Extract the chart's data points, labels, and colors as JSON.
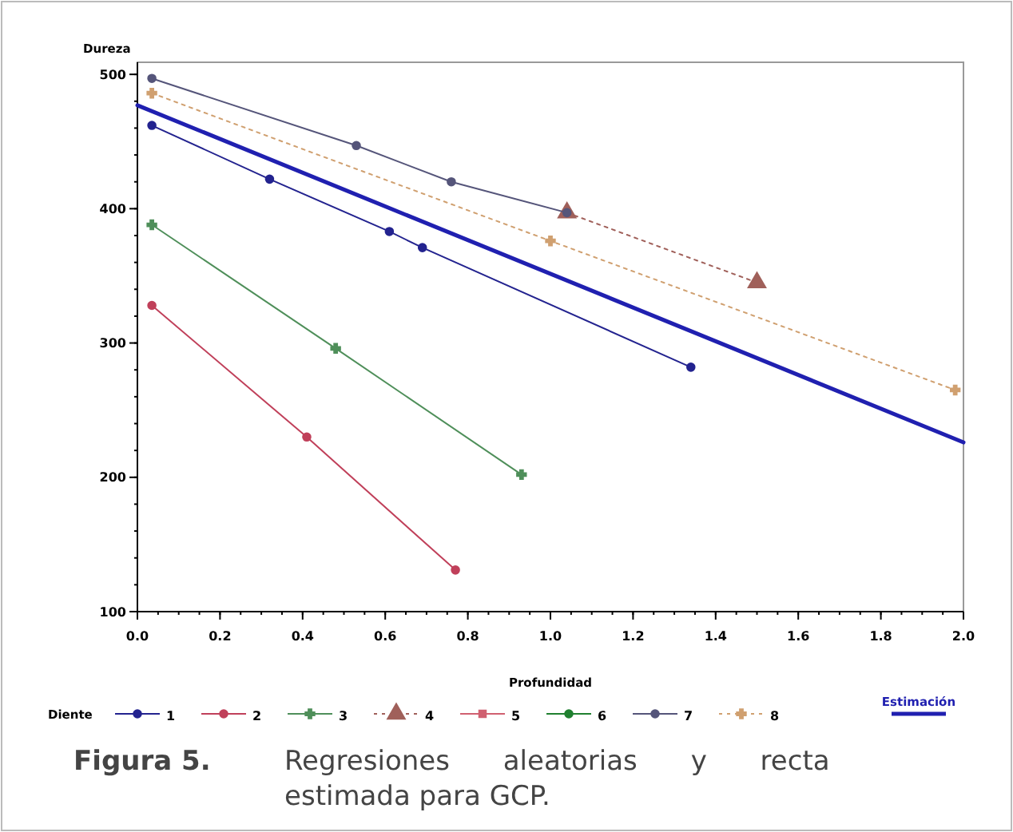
{
  "chart_data": {
    "type": "line",
    "xlabel": "Profundidad",
    "ylabel": "Dureza",
    "legend_title": "Diente",
    "legend": "bottom",
    "grid": false,
    "xlim": [
      0,
      2
    ],
    "ylim": [
      100,
      509
    ],
    "xticks": [
      {
        "value": 0,
        "label": "0.0"
      },
      {
        "value": 0.2,
        "label": "0.2"
      },
      {
        "value": 0.4,
        "label": "0.4"
      },
      {
        "value": 0.6,
        "label": "0.6"
      },
      {
        "value": 0.8,
        "label": "0.8"
      },
      {
        "value": 1,
        "label": "1.0"
      },
      {
        "value": 1.2,
        "label": "1.2"
      },
      {
        "value": 1.4,
        "label": "1.4"
      },
      {
        "value": 1.6,
        "label": "1.6"
      },
      {
        "value": 1.8,
        "label": "1.8"
      },
      {
        "value": 2,
        "label": "2.0"
      }
    ],
    "yticks": [
      100,
      200,
      300,
      400,
      500
    ],
    "series": [
      {
        "name": "1",
        "color": "#23238f",
        "marker": "circle",
        "line_style": "solid",
        "x": [
          0.035,
          0.32,
          0.61,
          0.69,
          1.34
        ],
        "values": [
          462,
          422,
          383,
          371,
          282
        ]
      },
      {
        "name": "2",
        "color": "#c0405a",
        "marker": "circle",
        "line_style": "solid",
        "x": [
          0.035,
          0.41,
          0.77
        ],
        "values": [
          328,
          230,
          131
        ]
      },
      {
        "name": "3",
        "color": "#4f8f5a",
        "marker": "cross",
        "line_style": "solid",
        "x": [
          0.035,
          0.48,
          0.93
        ],
        "values": [
          388,
          296,
          202
        ]
      },
      {
        "name": "4",
        "color": "#a0605a",
        "marker": "triangle",
        "line_style": "dotted",
        "x": [
          1.04,
          1.5
        ],
        "values": [
          397,
          345
        ]
      },
      {
        "name": "5",
        "color": "#d06070",
        "marker": "square",
        "line_style": "solid"
      },
      {
        "name": "6",
        "color": "#208030",
        "marker": "circle",
        "line_style": "solid"
      },
      {
        "name": "7",
        "color": "#55557a",
        "marker": "circle",
        "line_style": "solid",
        "x": [
          0.035,
          0.53,
          0.76,
          1.04
        ],
        "values": [
          497,
          447,
          420,
          397
        ]
      },
      {
        "name": "8",
        "color": "#d0a070",
        "marker": "cross",
        "line_style": "dotted",
        "x": [
          0.035,
          1.0,
          1.98
        ],
        "values": [
          486,
          376,
          265
        ]
      },
      {
        "name": "Estimación",
        "color": "#2020b0",
        "marker": "none",
        "line_style": "solid",
        "x": [
          0,
          2
        ],
        "values": [
          477,
          226
        ]
      }
    ],
    "annotations": [
      "Figura 5. Regresiones aleatorias y recta estimada para GCP."
    ]
  }
}
